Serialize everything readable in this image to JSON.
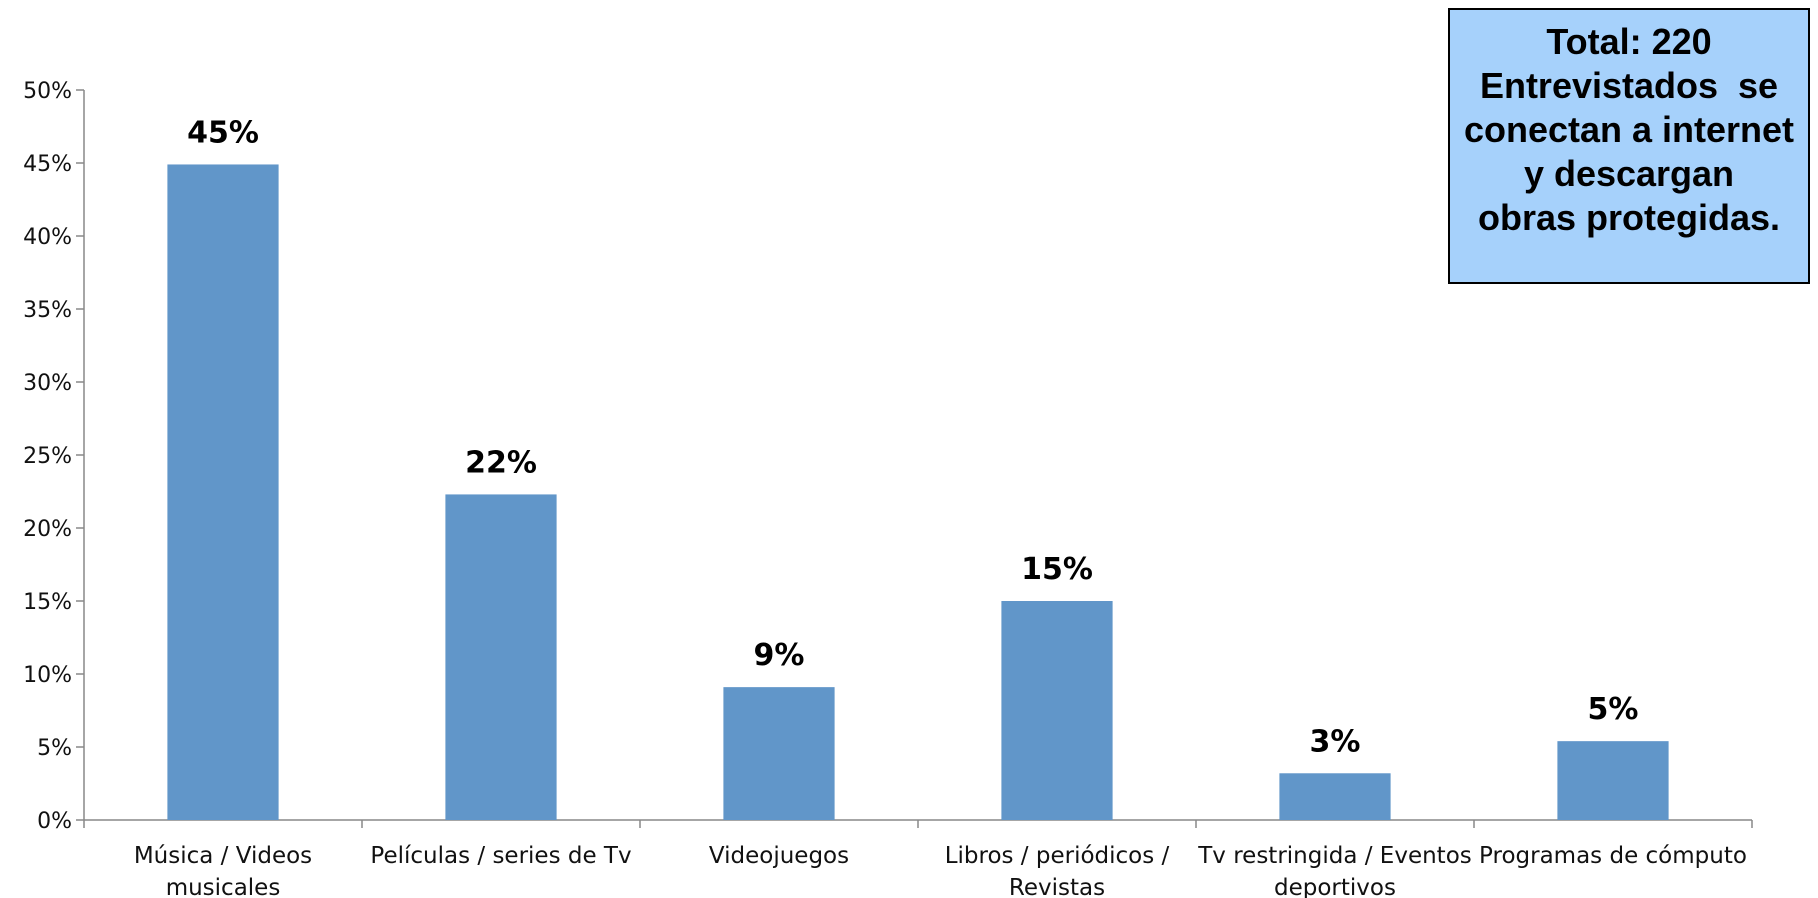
{
  "chart_data": {
    "type": "bar",
    "title": "",
    "xlabel": "",
    "ylabel": "",
    "ylim": [
      0,
      50
    ],
    "y_ticks": [
      "0%",
      "5%",
      "10%",
      "15%",
      "20%",
      "25%",
      "30%",
      "35%",
      "40%",
      "45%",
      "50%"
    ],
    "categories": [
      [
        "Música / Videos",
        "musicales"
      ],
      [
        "Películas / series de Tv"
      ],
      [
        "Videojuegos"
      ],
      [
        "Libros / periódicos /",
        "Revistas"
      ],
      [
        "Tv restringida / Eventos",
        "deportivos"
      ],
      [
        "Programas de cómputo"
      ]
    ],
    "values": [
      44.9,
      22.3,
      9.1,
      15.0,
      3.2,
      5.4
    ],
    "data_labels": [
      "45%",
      "22%",
      "9%",
      "15%",
      "3%",
      "5%"
    ],
    "bar_color": "#6196c9",
    "grid": false,
    "legend": "none"
  },
  "note": {
    "lines": [
      "Total: 220",
      "Entrevistados  se",
      "conectan a internet",
      "y descargan",
      "obras protegidas."
    ],
    "background": "#a6d1fb"
  }
}
